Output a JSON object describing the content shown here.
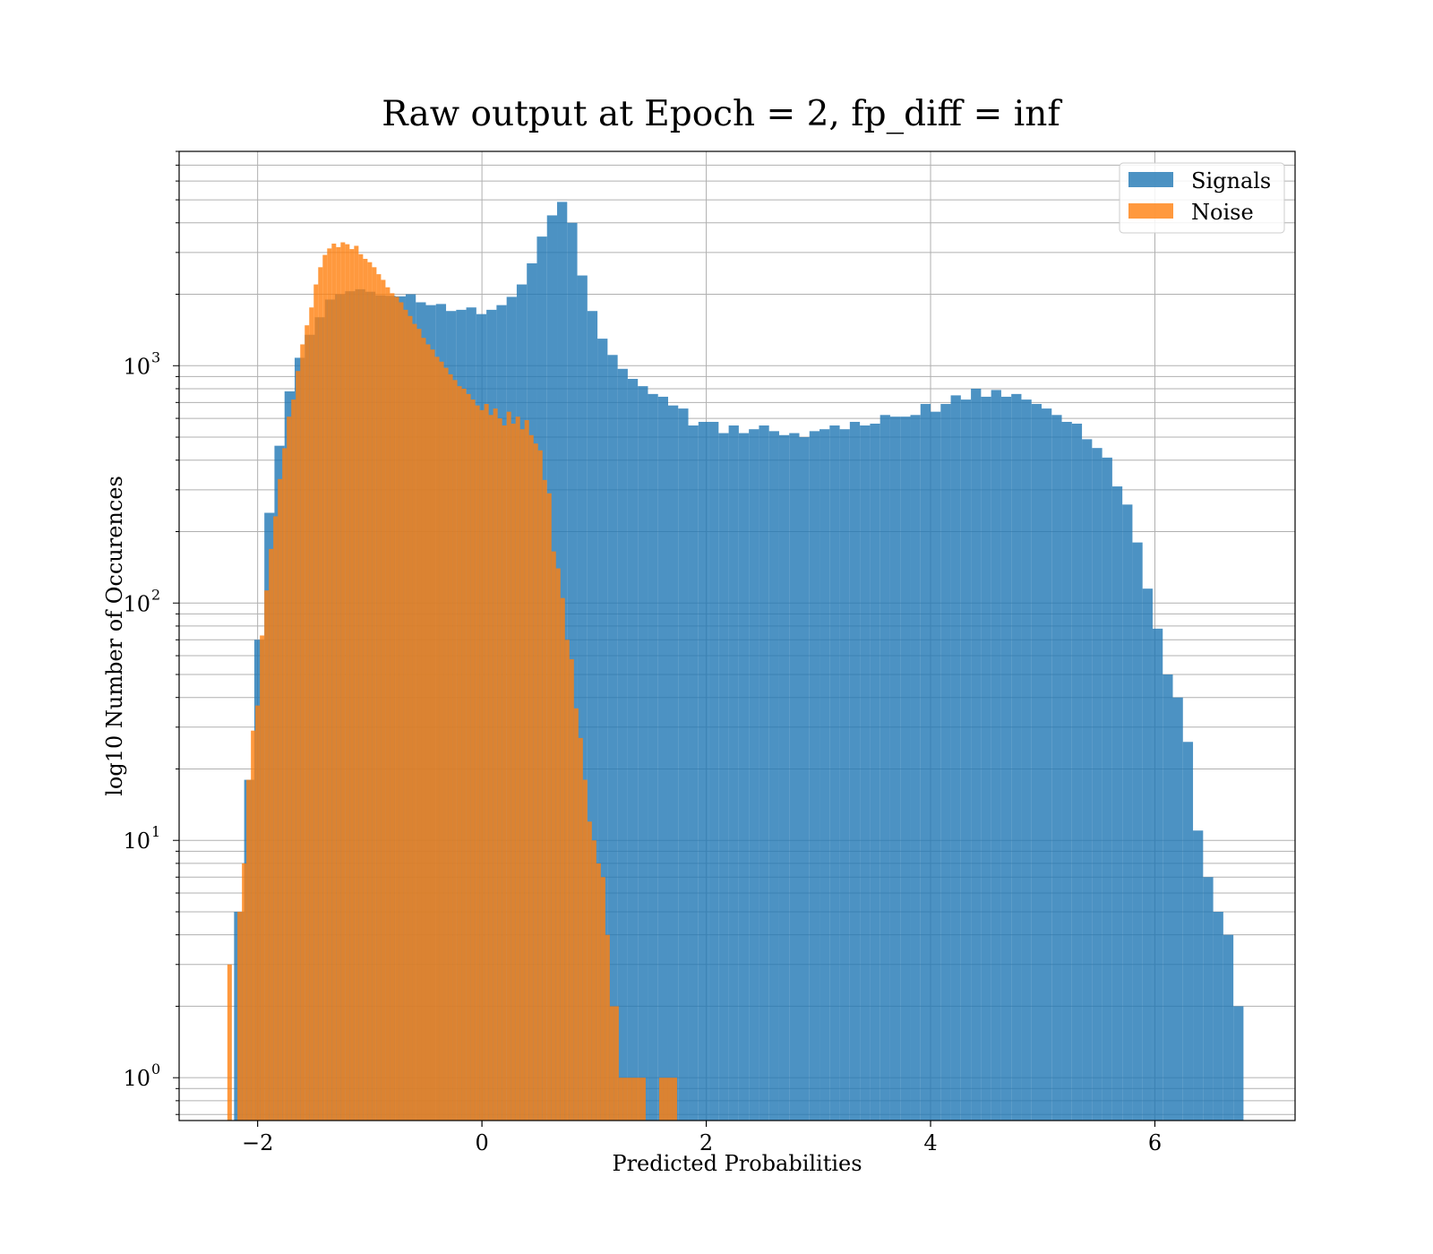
{
  "chart_data": {
    "type": "bar",
    "title": "Raw output at Epoch = 2, fp_diff = inf",
    "xlabel": "Predicted Probabilities",
    "ylabel": "log10 Number of Occurences",
    "yscale": "log",
    "xlim": [
      -2.7,
      7.25
    ],
    "ylim": [
      0.66,
      8000
    ],
    "xticks": [
      -2,
      0,
      2,
      4,
      6
    ],
    "xtick_labels": [
      "−2",
      "0",
      "2",
      "4",
      "6"
    ],
    "yticks": [
      1,
      10,
      100,
      1000
    ],
    "ytick_labels": [
      "10",
      "10",
      "10",
      "10"
    ],
    "ytick_exponents": [
      "0",
      "1",
      "2",
      "3"
    ],
    "grid": true,
    "legend": {
      "placement": "top-right",
      "entries": [
        "Signals",
        "Noise"
      ]
    },
    "series": [
      {
        "name": "Signals",
        "color": "#1f77b4",
        "bins": [
          [
            -2.21,
            -2.12,
            5
          ],
          [
            -2.12,
            -2.03,
            18
          ],
          [
            -2.03,
            -1.94,
            70
          ],
          [
            -1.94,
            -1.85,
            240
          ],
          [
            -1.85,
            -1.76,
            460
          ],
          [
            -1.76,
            -1.67,
            780
          ],
          [
            -1.67,
            -1.58,
            1080
          ],
          [
            -1.58,
            -1.49,
            1350
          ],
          [
            -1.49,
            -1.4,
            1600
          ],
          [
            -1.4,
            -1.31,
            1900
          ],
          [
            -1.31,
            -1.22,
            2000
          ],
          [
            -1.22,
            -1.13,
            2060
          ],
          [
            -1.13,
            -1.04,
            2100
          ],
          [
            -1.04,
            -0.95,
            2050
          ],
          [
            -0.95,
            -0.86,
            1980
          ],
          [
            -0.86,
            -0.77,
            1970
          ],
          [
            -0.77,
            -0.68,
            1960
          ],
          [
            -0.68,
            -0.59,
            2000
          ],
          [
            -0.59,
            -0.5,
            1850
          ],
          [
            -0.5,
            -0.41,
            1800
          ],
          [
            -0.41,
            -0.32,
            1820
          ],
          [
            -0.32,
            -0.23,
            1700
          ],
          [
            -0.23,
            -0.14,
            1720
          ],
          [
            -0.14,
            -0.05,
            1760
          ],
          [
            -0.05,
            0.04,
            1650
          ],
          [
            0.04,
            0.13,
            1720
          ],
          [
            0.13,
            0.22,
            1800
          ],
          [
            0.22,
            0.31,
            1950
          ],
          [
            0.31,
            0.4,
            2200
          ],
          [
            0.4,
            0.49,
            2700
          ],
          [
            0.49,
            0.58,
            3500
          ],
          [
            0.58,
            0.67,
            4300
          ],
          [
            0.67,
            0.76,
            4900
          ],
          [
            0.76,
            0.85,
            4000
          ],
          [
            0.85,
            0.94,
            2400
          ],
          [
            0.94,
            1.03,
            1700
          ],
          [
            1.03,
            1.12,
            1300
          ],
          [
            1.12,
            1.21,
            1110
          ],
          [
            1.21,
            1.3,
            970
          ],
          [
            1.3,
            1.39,
            880
          ],
          [
            1.39,
            1.48,
            820
          ],
          [
            1.48,
            1.57,
            760
          ],
          [
            1.57,
            1.66,
            740
          ],
          [
            1.66,
            1.75,
            680
          ],
          [
            1.75,
            1.84,
            660
          ],
          [
            1.84,
            1.93,
            560
          ],
          [
            1.93,
            2.02,
            580
          ],
          [
            2.02,
            2.11,
            580
          ],
          [
            2.11,
            2.2,
            520
          ],
          [
            2.2,
            2.29,
            560
          ],
          [
            2.29,
            2.38,
            520
          ],
          [
            2.38,
            2.47,
            540
          ],
          [
            2.47,
            2.56,
            560
          ],
          [
            2.56,
            2.65,
            530
          ],
          [
            2.65,
            2.74,
            510
          ],
          [
            2.74,
            2.83,
            520
          ],
          [
            2.83,
            2.92,
            500
          ],
          [
            2.92,
            3.01,
            530
          ],
          [
            3.01,
            3.1,
            540
          ],
          [
            3.1,
            3.19,
            560
          ],
          [
            3.19,
            3.28,
            540
          ],
          [
            3.28,
            3.37,
            580
          ],
          [
            3.37,
            3.46,
            560
          ],
          [
            3.46,
            3.55,
            570
          ],
          [
            3.55,
            3.64,
            620
          ],
          [
            3.64,
            3.73,
            610
          ],
          [
            3.73,
            3.82,
            610
          ],
          [
            3.82,
            3.91,
            620
          ],
          [
            3.91,
            4.0,
            690
          ],
          [
            4.0,
            4.09,
            640
          ],
          [
            4.09,
            4.18,
            690
          ],
          [
            4.18,
            4.27,
            750
          ],
          [
            4.27,
            4.36,
            720
          ],
          [
            4.36,
            4.45,
            800
          ],
          [
            4.45,
            4.54,
            740
          ],
          [
            4.54,
            4.63,
            790
          ],
          [
            4.63,
            4.72,
            740
          ],
          [
            4.72,
            4.81,
            760
          ],
          [
            4.81,
            4.9,
            720
          ],
          [
            4.9,
            4.99,
            690
          ],
          [
            4.99,
            5.08,
            660
          ],
          [
            5.08,
            5.17,
            620
          ],
          [
            5.17,
            5.26,
            580
          ],
          [
            5.26,
            5.35,
            570
          ],
          [
            5.35,
            5.44,
            490
          ],
          [
            5.44,
            5.53,
            450
          ],
          [
            5.53,
            5.62,
            410
          ],
          [
            5.62,
            5.71,
            310
          ],
          [
            5.71,
            5.8,
            260
          ],
          [
            5.8,
            5.89,
            180
          ],
          [
            5.89,
            5.98,
            115
          ],
          [
            5.98,
            6.07,
            78
          ],
          [
            6.07,
            6.16,
            50
          ],
          [
            6.16,
            6.25,
            40
          ],
          [
            6.25,
            6.34,
            26
          ],
          [
            6.34,
            6.43,
            11
          ],
          [
            6.43,
            6.52,
            7
          ],
          [
            6.52,
            6.61,
            5
          ],
          [
            6.61,
            6.7,
            4
          ],
          [
            6.7,
            6.79,
            2
          ]
        ]
      },
      {
        "name": "Noise",
        "color": "#ff7f0e",
        "bins": [
          [
            -2.27,
            -2.23,
            3
          ],
          [
            -2.18,
            -2.14,
            5
          ],
          [
            -2.14,
            -2.1,
            8
          ],
          [
            -2.1,
            -2.06,
            18
          ],
          [
            -2.06,
            -2.02,
            29
          ],
          [
            -2.02,
            -1.98,
            37
          ],
          [
            -1.98,
            -1.94,
            73
          ],
          [
            -1.94,
            -1.9,
            113
          ],
          [
            -1.9,
            -1.86,
            169
          ],
          [
            -1.86,
            -1.82,
            232
          ],
          [
            -1.82,
            -1.78,
            333
          ],
          [
            -1.78,
            -1.74,
            449
          ],
          [
            -1.74,
            -1.7,
            610
          ],
          [
            -1.7,
            -1.66,
            720
          ],
          [
            -1.66,
            -1.62,
            950
          ],
          [
            -1.62,
            -1.58,
            1230
          ],
          [
            -1.58,
            -1.54,
            1480
          ],
          [
            -1.54,
            -1.5,
            1760
          ],
          [
            -1.5,
            -1.46,
            2200
          ],
          [
            -1.46,
            -1.42,
            2600
          ],
          [
            -1.42,
            -1.38,
            2930
          ],
          [
            -1.38,
            -1.34,
            3120
          ],
          [
            -1.34,
            -1.3,
            3270
          ],
          [
            -1.3,
            -1.26,
            3160
          ],
          [
            -1.26,
            -1.22,
            3310
          ],
          [
            -1.22,
            -1.18,
            3250
          ],
          [
            -1.18,
            -1.14,
            3100
          ],
          [
            -1.14,
            -1.1,
            3200
          ],
          [
            -1.1,
            -1.06,
            2950
          ],
          [
            -1.06,
            -1.02,
            2820
          ],
          [
            -1.02,
            -0.98,
            2730
          ],
          [
            -0.98,
            -0.94,
            2600
          ],
          [
            -0.94,
            -0.9,
            2430
          ],
          [
            -0.9,
            -0.86,
            2300
          ],
          [
            -0.86,
            -0.82,
            2140
          ],
          [
            -0.82,
            -0.78,
            2020
          ],
          [
            -0.78,
            -0.74,
            1950
          ],
          [
            -0.74,
            -0.7,
            1850
          ],
          [
            -0.7,
            -0.66,
            1720
          ],
          [
            -0.66,
            -0.62,
            1620
          ],
          [
            -0.62,
            -0.58,
            1500
          ],
          [
            -0.58,
            -0.54,
            1430
          ],
          [
            -0.54,
            -0.5,
            1310
          ],
          [
            -0.5,
            -0.46,
            1230
          ],
          [
            -0.46,
            -0.42,
            1170
          ],
          [
            -0.42,
            -0.38,
            1090
          ],
          [
            -0.38,
            -0.34,
            1040
          ],
          [
            -0.34,
            -0.3,
            980
          ],
          [
            -0.3,
            -0.26,
            920
          ],
          [
            -0.26,
            -0.22,
            870
          ],
          [
            -0.22,
            -0.18,
            820
          ],
          [
            -0.18,
            -0.14,
            800
          ],
          [
            -0.14,
            -0.1,
            760
          ],
          [
            -0.1,
            -0.06,
            720
          ],
          [
            -0.06,
            -0.02,
            680
          ],
          [
            -0.02,
            0.02,
            650
          ],
          [
            0.02,
            0.06,
            690
          ],
          [
            0.06,
            0.1,
            620
          ],
          [
            0.1,
            0.14,
            660
          ],
          [
            0.14,
            0.18,
            600
          ],
          [
            0.18,
            0.22,
            560
          ],
          [
            0.22,
            0.26,
            640
          ],
          [
            0.26,
            0.3,
            570
          ],
          [
            0.3,
            0.34,
            610
          ],
          [
            0.34,
            0.38,
            540
          ],
          [
            0.38,
            0.42,
            590
          ],
          [
            0.42,
            0.46,
            510
          ],
          [
            0.46,
            0.5,
            470
          ],
          [
            0.5,
            0.54,
            440
          ],
          [
            0.54,
            0.58,
            330
          ],
          [
            0.58,
            0.62,
            290
          ],
          [
            0.62,
            0.66,
            165
          ],
          [
            0.66,
            0.7,
            140
          ],
          [
            0.7,
            0.74,
            105
          ],
          [
            0.74,
            0.78,
            70
          ],
          [
            0.78,
            0.82,
            58
          ],
          [
            0.82,
            0.86,
            36
          ],
          [
            0.86,
            0.9,
            27
          ],
          [
            0.9,
            0.94,
            18
          ],
          [
            0.94,
            0.98,
            12
          ],
          [
            0.98,
            1.02,
            10
          ],
          [
            1.02,
            1.06,
            8
          ],
          [
            1.06,
            1.1,
            7
          ],
          [
            1.1,
            1.14,
            4
          ],
          [
            1.14,
            1.18,
            2
          ],
          [
            1.18,
            1.22,
            2
          ],
          [
            1.22,
            1.26,
            1
          ],
          [
            1.26,
            1.3,
            1
          ],
          [
            1.3,
            1.34,
            1
          ],
          [
            1.34,
            1.38,
            1
          ],
          [
            1.38,
            1.42,
            1
          ],
          [
            1.42,
            1.46,
            1
          ],
          [
            1.58,
            1.62,
            1
          ],
          [
            1.62,
            1.66,
            1
          ],
          [
            1.66,
            1.7,
            1
          ],
          [
            1.7,
            1.74,
            1
          ]
        ]
      }
    ]
  }
}
